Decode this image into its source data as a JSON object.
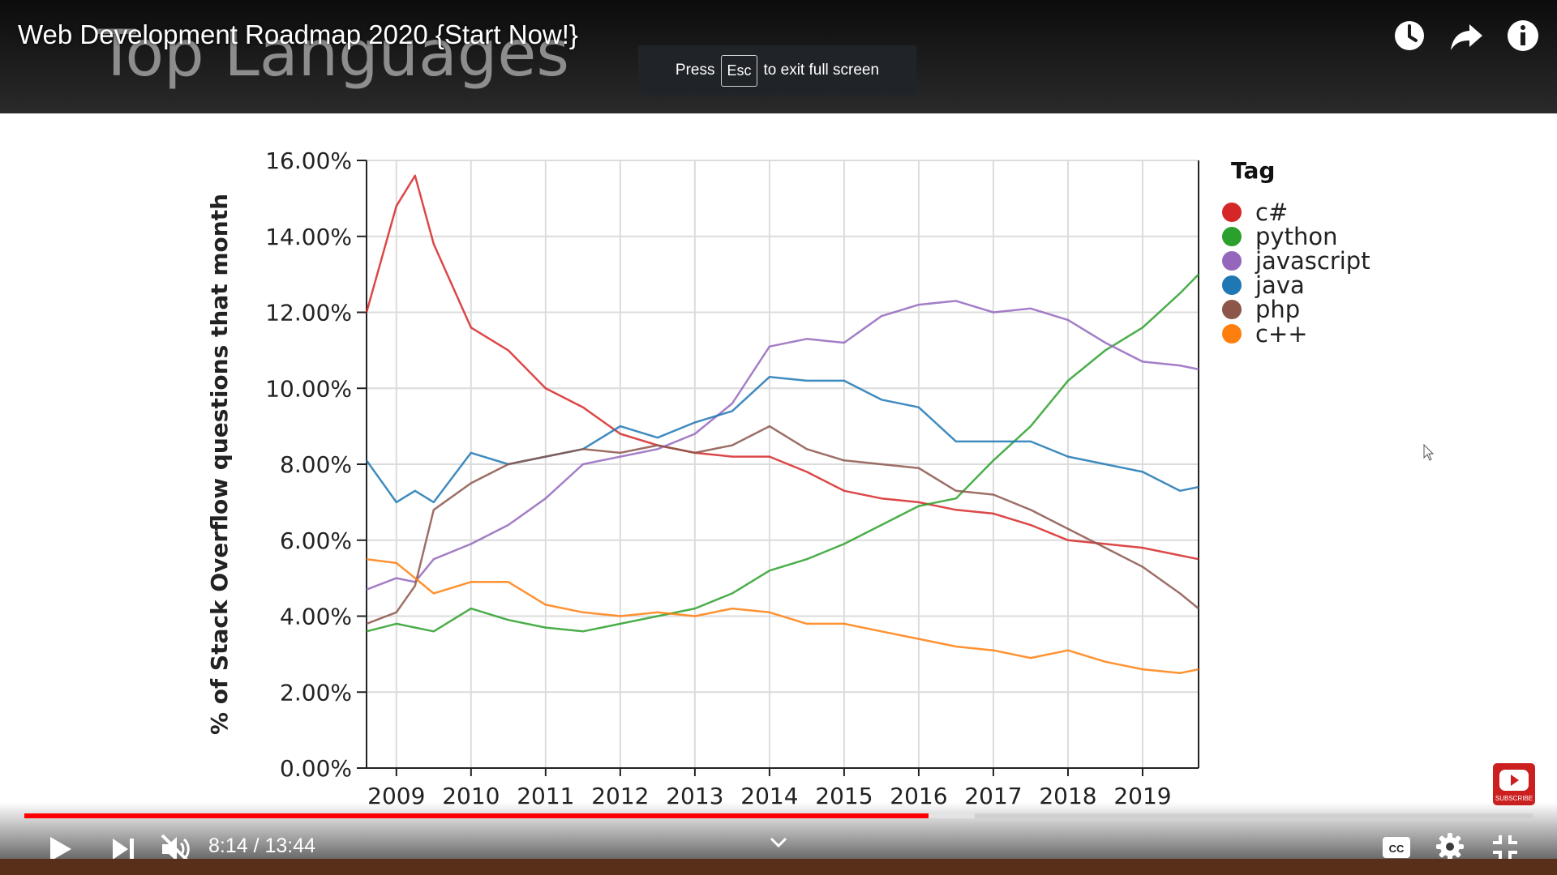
{
  "player": {
    "video_title": "Web Development Roadmap 2020 {Start Now!}",
    "background_heading": "Top Languages",
    "fullscreen_toast": {
      "before": "Press",
      "key": "Esc",
      "after": "to exit full screen"
    },
    "time_display": "8:14 / 13:44",
    "progress": {
      "played_fraction": 0.5995,
      "buffered_fraction": 0.63
    },
    "subscribe_label": "SUBSCRIBE",
    "icons": {
      "top": [
        "watch-later-icon",
        "share-icon",
        "info-icon"
      ],
      "bottom_left": [
        "play-icon",
        "next-icon",
        "mute-icon"
      ],
      "bottom_right": [
        "captions-icon",
        "settings-icon",
        "exit-fullscreen-icon"
      ],
      "center": "chevron-down-icon"
    },
    "colors": {
      "progress_played": "#ff0000",
      "subscribe": "#cc1f1f"
    }
  },
  "chart_data": {
    "type": "line",
    "ylabel": "% of Stack Overflow questions that month",
    "xlabel": "",
    "legend_title": "Tag",
    "legend_position": "right",
    "grid": true,
    "xlim": [
      2008.6,
      2019.75
    ],
    "ylim": [
      0,
      16
    ],
    "xticks": [
      "2009",
      "2010",
      "2011",
      "2012",
      "2013",
      "2014",
      "2015",
      "2016",
      "2017",
      "2018",
      "2019"
    ],
    "yticks": [
      "0.00%",
      "2.00%",
      "4.00%",
      "6.00%",
      "8.00%",
      "10.00%",
      "12.00%",
      "14.00%",
      "16.00%"
    ],
    "x": [
      2008.6,
      2009.0,
      2009.25,
      2009.5,
      2010.0,
      2010.5,
      2011.0,
      2011.5,
      2012.0,
      2012.5,
      2013.0,
      2013.5,
      2014.0,
      2014.5,
      2015.0,
      2015.5,
      2016.0,
      2016.5,
      2017.0,
      2017.5,
      2018.0,
      2018.5,
      2019.0,
      2019.5,
      2019.75
    ],
    "series": [
      {
        "name": "c#",
        "color": "#d62728",
        "values": [
          12.0,
          14.8,
          15.6,
          13.8,
          11.6,
          11.0,
          10.0,
          9.5,
          8.8,
          8.5,
          8.3,
          8.2,
          8.2,
          7.8,
          7.3,
          7.1,
          7.0,
          6.8,
          6.7,
          6.4,
          6.0,
          5.9,
          5.8,
          5.6,
          5.5
        ]
      },
      {
        "name": "python",
        "color": "#2ca02c",
        "values": [
          3.6,
          3.8,
          3.7,
          3.6,
          4.2,
          3.9,
          3.7,
          3.6,
          3.8,
          4.0,
          4.2,
          4.6,
          5.2,
          5.5,
          5.9,
          6.4,
          6.9,
          7.1,
          8.1,
          9.0,
          10.2,
          11.0,
          11.6,
          12.5,
          13.0
        ]
      },
      {
        "name": "javascript",
        "color": "#9467bd",
        "values": [
          4.7,
          5.0,
          4.9,
          5.5,
          5.9,
          6.4,
          7.1,
          8.0,
          8.2,
          8.4,
          8.8,
          9.6,
          11.1,
          11.3,
          11.2,
          11.9,
          12.2,
          12.3,
          12.0,
          12.1,
          11.8,
          11.2,
          10.7,
          10.6,
          10.5
        ]
      },
      {
        "name": "java",
        "color": "#1f77b4",
        "values": [
          8.1,
          7.0,
          7.3,
          7.0,
          8.3,
          8.0,
          8.2,
          8.4,
          9.0,
          8.7,
          9.1,
          9.4,
          10.3,
          10.2,
          10.2,
          9.7,
          9.5,
          8.6,
          8.6,
          8.6,
          8.2,
          8.0,
          7.8,
          7.3,
          7.4
        ]
      },
      {
        "name": "php",
        "color": "#8c564b",
        "values": [
          3.8,
          4.1,
          4.8,
          6.8,
          7.5,
          8.0,
          8.2,
          8.4,
          8.3,
          8.5,
          8.3,
          8.5,
          9.0,
          8.4,
          8.1,
          8.0,
          7.9,
          7.3,
          7.2,
          6.8,
          6.3,
          5.8,
          5.3,
          4.6,
          4.2
        ]
      },
      {
        "name": "c++",
        "color": "#ff7f0e",
        "values": [
          5.5,
          5.4,
          5.0,
          4.6,
          4.9,
          4.9,
          4.3,
          4.1,
          4.0,
          4.1,
          4.0,
          4.2,
          4.1,
          3.8,
          3.8,
          3.6,
          3.4,
          3.2,
          3.1,
          2.9,
          3.1,
          2.8,
          2.6,
          2.5,
          2.6
        ]
      }
    ]
  }
}
